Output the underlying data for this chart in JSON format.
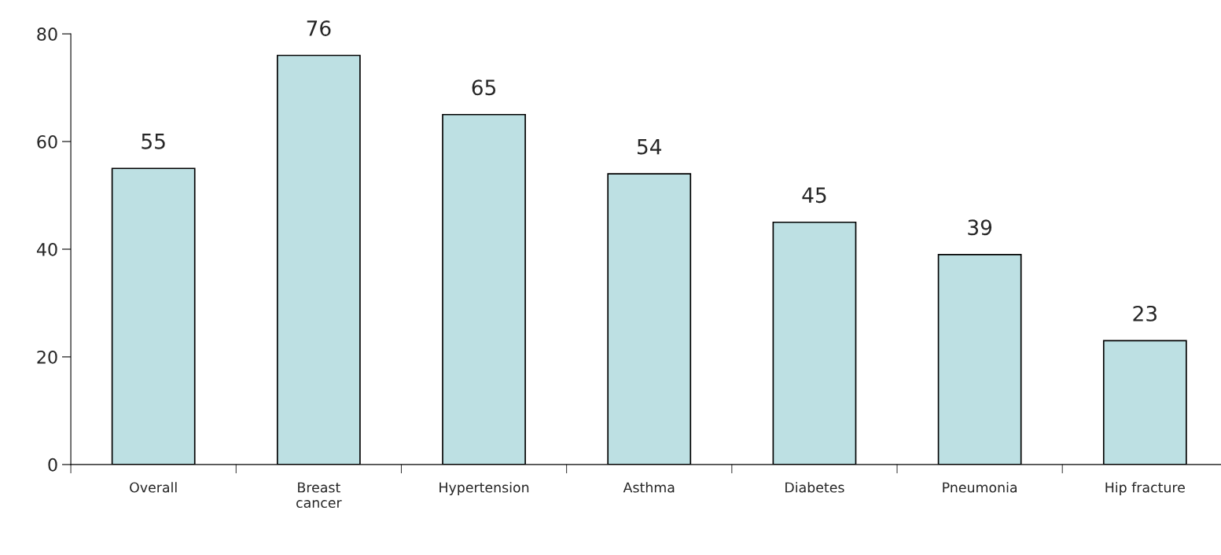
{
  "chart_data": {
    "type": "bar",
    "categories": [
      "Overall",
      "Breast\ncancer",
      "Hypertension",
      "Asthma",
      "Diabetes",
      "Pneumonia",
      "Hip fracture"
    ],
    "values": [
      55,
      76,
      65,
      54,
      45,
      39,
      23
    ],
    "color": "#bde0e3",
    "ylim": [
      0,
      80
    ],
    "yticks": [
      0,
      20,
      40,
      60,
      80
    ],
    "data_labels": true,
    "grid": false,
    "legend": false
  }
}
